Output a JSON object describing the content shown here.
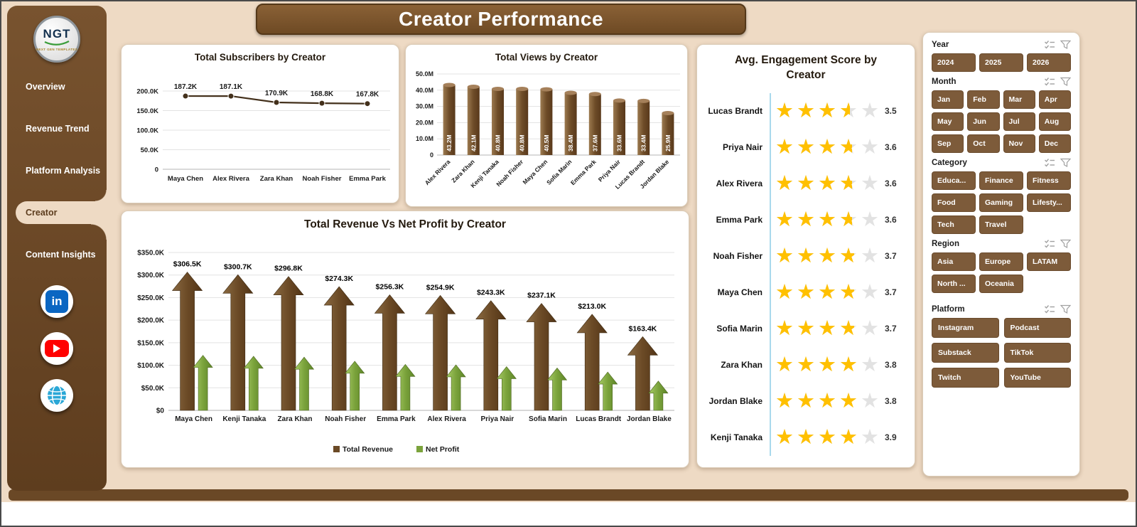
{
  "app": {
    "title": "Creator Performance"
  },
  "sidebar": {
    "logo": {
      "text": "NGT",
      "subtext": "NEXT GEN TEMPLATES"
    },
    "items": [
      {
        "label": "Overview",
        "active": false
      },
      {
        "label": "Revenue Trend",
        "active": false
      },
      {
        "label": "Platform Analysis",
        "active": false
      },
      {
        "label": "Creator",
        "active": true
      },
      {
        "label": "Content Insights",
        "active": false
      }
    ],
    "social": [
      {
        "name": "linkedin"
      },
      {
        "name": "youtube"
      },
      {
        "name": "website"
      }
    ]
  },
  "filters": [
    {
      "label": "Year",
      "cols": 3,
      "icons": [
        "select-all-icon",
        "clear-filter-icon"
      ],
      "options": [
        "2024",
        "2025",
        "2026"
      ]
    },
    {
      "label": "Month",
      "cols": 4,
      "icons": [
        "select-all-icon",
        "clear-filter-icon"
      ],
      "options": [
        "Jan",
        "Feb",
        "Mar",
        "Apr",
        "May",
        "Jun",
        "Jul",
        "Aug",
        "Sep",
        "Oct",
        "Nov",
        "Dec"
      ]
    },
    {
      "label": "Category",
      "cols": 3,
      "icons": [
        "select-all-icon",
        "clear-filter-icon"
      ],
      "options": [
        "Educa...",
        "Finance",
        "Fitness",
        "Food",
        "Gaming",
        "Lifesty...",
        "Tech",
        "Travel"
      ]
    },
    {
      "label": "Region",
      "cols": 3,
      "icons": [
        "select-all-icon",
        "clear-filter-icon"
      ],
      "options": [
        "Asia",
        "Europe",
        "LATAM",
        "North ...",
        "Oceania"
      ]
    },
    {
      "label": "Platform",
      "cols": 2,
      "icons": [
        "select-all-icon",
        "clear-filter-icon"
      ],
      "options": [
        "Instagram",
        "Podcast",
        "Substack",
        "TikTok",
        "Twitch",
        "YouTube"
      ]
    }
  ],
  "chart_data": [
    {
      "id": "subscribers",
      "type": "line",
      "title": "Total Subscribers by Creator",
      "categories": [
        "Maya Chen",
        "Alex Rivera",
        "Zara Khan",
        "Noah Fisher",
        "Emma Park"
      ],
      "values": [
        187.2,
        187.1,
        170.9,
        168.8,
        167.8
      ],
      "labels": [
        "187.2K",
        "187.1K",
        "170.9K",
        "168.8K",
        "167.8K"
      ],
      "unit": "K",
      "ylim": [
        0,
        200
      ],
      "yticks": [
        0,
        50,
        100,
        150,
        200
      ],
      "ytick_labels": [
        "0",
        "50.0K",
        "100.0K",
        "150.0K",
        "200.0K"
      ],
      "grid": true
    },
    {
      "id": "views",
      "type": "bar",
      "title": "Total Views by Creator",
      "categories": [
        "Alex Rivera",
        "Zara Khan",
        "Kenji Tanaka",
        "Noah Fisher",
        "Maya Chen",
        "Sofia Marin",
        "Emma Park",
        "Priya Nair",
        "Lucas Brandt",
        "Jordan Blake"
      ],
      "values": [
        43.2,
        42.1,
        40.8,
        40.8,
        40.5,
        38.4,
        37.6,
        33.6,
        33.4,
        25.9
      ],
      "labels": [
        "43.2M",
        "42.1M",
        "40.8M",
        "40.8M",
        "40.5M",
        "38.4M",
        "37.6M",
        "33.6M",
        "33.4M",
        "25.9M"
      ],
      "unit": "M",
      "ylim": [
        0,
        50
      ],
      "yticks": [
        0,
        10,
        20,
        30,
        40,
        50
      ],
      "ytick_labels": [
        "0",
        "10.0M",
        "20.0M",
        "30.0M",
        "40.0M",
        "50.0M"
      ],
      "grid": true
    },
    {
      "id": "revenue_vs_profit",
      "type": "bar",
      "title": "Total Revenue Vs Net Profit by Creator",
      "categories": [
        "Maya Chen",
        "Kenji Tanaka",
        "Zara Khan",
        "Noah Fisher",
        "Emma Park",
        "Alex Rivera",
        "Priya Nair",
        "Sofia Marin",
        "Lucas Brandt",
        "Jordan Blake"
      ],
      "series": [
        {
          "name": "Total Revenue",
          "values": [
            306.5,
            300.7,
            296.8,
            274.3,
            256.3,
            254.9,
            243.3,
            237.1,
            213.0,
            163.4
          ],
          "labels": [
            "$306.5K",
            "$300.7K",
            "$296.8K",
            "$274.3K",
            "$256.3K",
            "$254.9K",
            "$243.3K",
            "$237.1K",
            "$213.0K",
            "$163.4K"
          ]
        },
        {
          "name": "Net Profit",
          "values": [
            122,
            120,
            118,
            109,
            102,
            101,
            97,
            94,
            85,
            65
          ],
          "labels": []
        }
      ],
      "unit": "K",
      "ylim": [
        0,
        350
      ],
      "yticks": [
        0,
        50,
        100,
        150,
        200,
        250,
        300,
        350
      ],
      "ytick_labels": [
        "$0",
        "$50.0K",
        "$100.0K",
        "$150.0K",
        "$200.0K",
        "$250.0K",
        "$300.0K",
        "$350.0K"
      ],
      "legend": [
        "Total Revenue",
        "Net Profit"
      ],
      "legend_position": "bottom",
      "grid": true
    },
    {
      "id": "engagement",
      "type": "table",
      "title": "Avg. Engagement  Score by Creator",
      "max_stars": 5,
      "rows": [
        {
          "name": "Lucas Brandt",
          "score": 3.5
        },
        {
          "name": "Priya Nair",
          "score": 3.6
        },
        {
          "name": "Alex Rivera",
          "score": 3.6
        },
        {
          "name": "Emma Park",
          "score": 3.6
        },
        {
          "name": "Noah Fisher",
          "score": 3.7
        },
        {
          "name": "Maya Chen",
          "score": 3.7
        },
        {
          "name": "Sofia Marin",
          "score": 3.7
        },
        {
          "name": "Zara Khan",
          "score": 3.8
        },
        {
          "name": "Jordan Blake",
          "score": 3.8
        },
        {
          "name": "Kenji Tanaka",
          "score": 3.9
        }
      ]
    }
  ],
  "colors": {
    "background": "#eedac4",
    "sidebar_brown": "#6a4826",
    "banner_brown": "#7a5530",
    "button_brown": "#7d5b3a",
    "bar_brown": "#6e4b26",
    "profit_green": "#79a23d",
    "star_gold": "#ffc000",
    "star_empty": "#e2e2e2",
    "engagement_axis": "#a9d9ec",
    "linkedin_blue": "#0a66c2",
    "youtube_red": "#ff0000"
  }
}
